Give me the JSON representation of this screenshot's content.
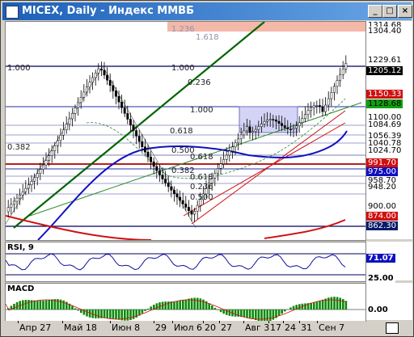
{
  "window": {
    "title": "MICEX, Daily - Индекс ММВБ",
    "buttons": {
      "minimize": "_",
      "maximize": "□",
      "close": "×"
    }
  },
  "price_axis": {
    "labels": [
      {
        "text": "1314.68",
        "bg": "#ffffff",
        "fg": "#000000"
      },
      {
        "text": "1304.40",
        "bg": "#ffffff",
        "fg": "#000000"
      },
      {
        "text": "1229.61",
        "bg": "#ffffff",
        "fg": "#000000"
      },
      {
        "text": "1205.12",
        "bg": "#000000",
        "fg": "#ffffff"
      },
      {
        "text": "1150.33",
        "bg": "#d01010",
        "fg": "#ffffff"
      },
      {
        "text": "1128.68",
        "bg": "#10a010",
        "fg": "#000000"
      },
      {
        "text": "1100.00",
        "bg": "#ffffff",
        "fg": "#000000"
      },
      {
        "text": "1084.69",
        "bg": "#ffffff",
        "fg": "#000000"
      },
      {
        "text": "1056.39",
        "bg": "#ffffff",
        "fg": "#000000"
      },
      {
        "text": "1040.78",
        "bg": "#ffffff",
        "fg": "#000000"
      },
      {
        "text": "1024.70",
        "bg": "#ffffff",
        "fg": "#000000"
      },
      {
        "text": "991.70",
        "bg": "#d01010",
        "fg": "#ffffff"
      },
      {
        "text": "975.00",
        "bg": "#1010c0",
        "fg": "#ffffff"
      },
      {
        "text": "958.70",
        "bg": "#ffffff",
        "fg": "#000000"
      },
      {
        "text": "948.20",
        "bg": "#ffffff",
        "fg": "#000000"
      },
      {
        "text": "900.00",
        "bg": "#ffffff",
        "fg": "#000000"
      },
      {
        "text": "874.00",
        "bg": "#d01010",
        "fg": "#ffffff"
      },
      {
        "text": "862.30",
        "bg": "#0a1a6a",
        "fg": "#ffffff"
      }
    ]
  },
  "fib_labels": [
    "1.000",
    "1.000",
    "0.236",
    "1.000",
    "0.618",
    "0.382",
    "0.500",
    "0.618",
    "0.382",
    "0.236",
    "0.500",
    "0.618",
    "1.236",
    "1.618"
  ],
  "rsi": {
    "title": "RSI, 9",
    "labels": [
      {
        "text": "71.07",
        "bg": "#1010c0",
        "fg": "#ffffff"
      },
      {
        "text": "25.00",
        "bg": "#ffffff",
        "fg": "#000000"
      }
    ]
  },
  "macd": {
    "title": "MACD",
    "labels": [
      {
        "text": "0.00",
        "bg": "#ffffff",
        "fg": "#000000"
      }
    ]
  },
  "x_axis": {
    "labels": [
      "Апр 27",
      "Май 18",
      "Июн 8",
      "29",
      "Июл 6",
      "20",
      "27",
      "Авг 3",
      "17",
      "24",
      "31",
      "Сен 7"
    ]
  },
  "colors": {
    "bull_candle": "#ffffff",
    "bear_candle": "#000000",
    "ma_blue": "#1010c0",
    "trend_green": "#006400",
    "trend_red": "#d01010",
    "highlight_rect": "#b8b8f0",
    "top_band": "#f4b8a8"
  }
}
